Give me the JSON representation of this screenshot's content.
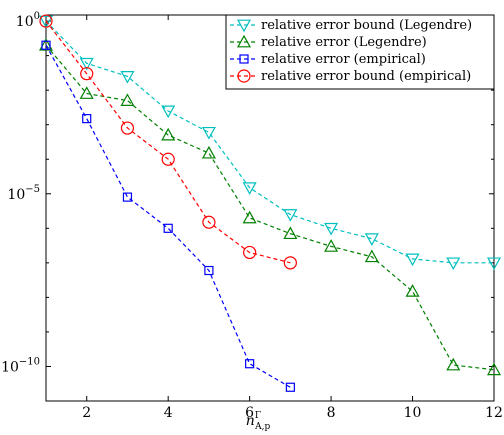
{
  "chart_data": {
    "type": "line",
    "x_axis": {
      "label_main": "n",
      "label_sup": "Γ",
      "label_sub": "A,p",
      "lim": [
        1,
        12
      ],
      "ticks": [
        2,
        4,
        6,
        8,
        10,
        12
      ],
      "tick_labels": [
        "2",
        "4",
        "6",
        "8",
        "10",
        "12"
      ]
    },
    "y_axis": {
      "scale": "log",
      "lim": [
        1e-11,
        1.5
      ],
      "ticks": [
        1,
        1e-05,
        1e-10
      ],
      "tick_base": [
        "10",
        "10",
        "10"
      ],
      "tick_exp": [
        "0",
        "−5",
        "−10"
      ]
    },
    "grid": false,
    "legend_position": "top-right",
    "series": [
      {
        "name": "relative error bound (Legendre)",
        "color": "#00BFBF",
        "marker": "triangle-down",
        "x": [
          1,
          2,
          3,
          4,
          5,
          6,
          7,
          8,
          9,
          10,
          11,
          12
        ],
        "y": [
          1,
          0.06,
          0.025,
          0.0025,
          0.0006,
          1.5e-05,
          2.5e-06,
          1e-06,
          5e-07,
          1.3e-07,
          1e-07,
          1e-07
        ]
      },
      {
        "name": "relative error (Legendre)",
        "color": "#008000",
        "marker": "triangle-up",
        "x": [
          1,
          2,
          3,
          4,
          5,
          6,
          7,
          8,
          9,
          10,
          11,
          12
        ],
        "y": [
          0.2,
          0.008,
          0.005,
          0.0005,
          0.00015,
          2e-06,
          7e-07,
          3e-07,
          1.5e-07,
          1.5e-08,
          1.1e-10,
          8e-11
        ]
      },
      {
        "name": "relative error (empirical)",
        "color": "#0000FF",
        "marker": "square",
        "x": [
          1,
          2,
          3,
          4,
          5,
          6,
          7
        ],
        "y": [
          0.2,
          0.0015,
          8e-06,
          1e-06,
          6e-08,
          1.2e-10,
          2.5e-11
        ]
      },
      {
        "name": "relative error bound (empirical)",
        "color": "#FF0000",
        "marker": "circle",
        "x": [
          1,
          2,
          3,
          4,
          5,
          6,
          7
        ],
        "y": [
          1,
          0.03,
          0.0008,
          0.0001,
          1.5e-06,
          2e-07,
          1e-07
        ]
      }
    ]
  }
}
